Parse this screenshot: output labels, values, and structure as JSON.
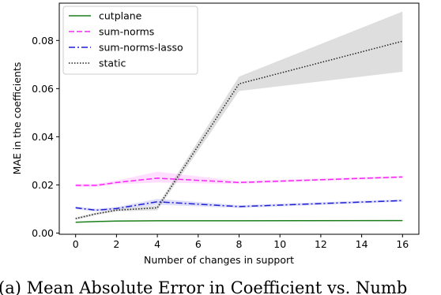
{
  "chart_data": {
    "type": "line",
    "caption": "(a) Mean Absolute Error in Coefficient vs. Numb",
    "x_label": "Number of changes in support",
    "y_label": "MAE in the coefficients",
    "x": [
      0,
      1,
      2,
      4,
      8,
      16
    ],
    "series": [
      {
        "name": "cutplane",
        "color": "#1a7f1a",
        "dash": "",
        "values": [
          0.0045,
          0.0048,
          0.005,
          0.0051,
          0.0051,
          0.0052
        ]
      },
      {
        "name": "sum-norms",
        "color": "#ff22ff",
        "dash": "7 3",
        "values": [
          0.0198,
          0.0198,
          0.021,
          0.0228,
          0.021,
          0.0233
        ],
        "lower": [
          0.0192,
          0.0192,
          0.0203,
          0.021,
          0.0204,
          0.0228
        ],
        "upper": [
          0.0204,
          0.0204,
          0.0218,
          0.0255,
          0.0216,
          0.0238
        ]
      },
      {
        "name": "sum-norms-lasso",
        "color": "#1f1fd6",
        "dash": "8 3 2 3",
        "values": [
          0.0105,
          0.0095,
          0.0102,
          0.013,
          0.011,
          0.0135
        ],
        "lower": [
          0.0099,
          0.0089,
          0.0096,
          0.0118,
          0.0104,
          0.013
        ],
        "upper": [
          0.0111,
          0.0101,
          0.0108,
          0.0142,
          0.0116,
          0.014
        ]
      },
      {
        "name": "static",
        "color": "#222222",
        "dash": "1.5 2",
        "values": [
          0.006,
          0.008,
          0.0095,
          0.0105,
          0.062,
          0.0797
        ],
        "lower": [
          0.0055,
          0.0075,
          0.009,
          0.0095,
          0.059,
          0.067
        ],
        "upper": [
          0.0065,
          0.0085,
          0.01,
          0.0115,
          0.065,
          0.092
        ]
      }
    ],
    "xlim": [
      -0.8,
      16.8
    ],
    "ylim": [
      -0.0005,
      0.0955
    ],
    "xticks": [
      0,
      2,
      4,
      6,
      8,
      10,
      12,
      14,
      16
    ],
    "yticks": [
      {
        "value": 0,
        "label": "0.00"
      },
      {
        "value": 0.02,
        "label": "0.02"
      },
      {
        "value": 0.04,
        "label": "0.04"
      },
      {
        "value": 0.06,
        "label": "0.06"
      },
      {
        "value": 0.08,
        "label": "0.08"
      }
    ],
    "legend": "upper left"
  }
}
